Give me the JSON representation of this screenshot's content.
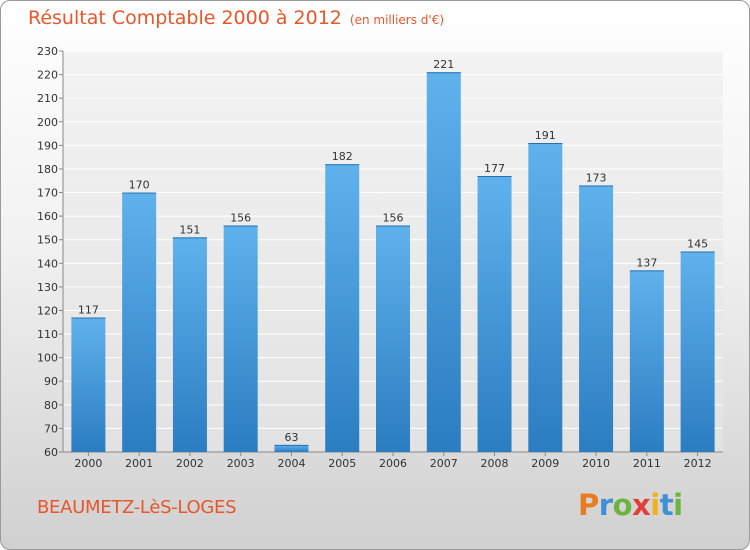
{
  "title": "Résultat Comptable 2000 à 2012",
  "subtitle": "(en milliers d'€)",
  "commune": "BEAUMETZ-LèS-LOGES",
  "logo": [
    "P",
    "r",
    "o",
    "x",
    "i",
    "t",
    "i"
  ],
  "colors": {
    "bar_top": "#5fb2ec",
    "bar_bottom": "#2b7dc2",
    "title": "#e8562a"
  },
  "chart_data": {
    "type": "bar",
    "title": "Résultat Comptable 2000 à 2012",
    "xlabel": "",
    "ylabel": "en milliers d'€",
    "categories": [
      "2000",
      "2001",
      "2002",
      "2003",
      "2004",
      "2005",
      "2006",
      "2007",
      "2008",
      "2009",
      "2010",
      "2011",
      "2012"
    ],
    "values": [
      117,
      170,
      151,
      156,
      63,
      182,
      156,
      221,
      177,
      191,
      173,
      137,
      145
    ],
    "ylim": [
      60,
      230
    ],
    "yticks": [
      60,
      70,
      80,
      90,
      100,
      110,
      120,
      130,
      140,
      150,
      160,
      170,
      180,
      190,
      200,
      210,
      220,
      230
    ],
    "grid": true,
    "legend": "none"
  }
}
